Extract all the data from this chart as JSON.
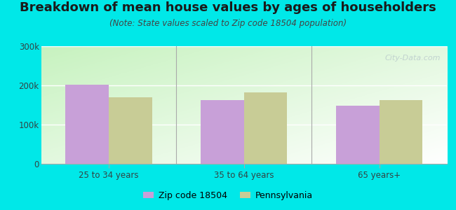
{
  "title": "Breakdown of mean house values by ages of householders",
  "subtitle": "(Note: State values scaled to Zip code 18504 population)",
  "categories": [
    "25 to 34 years",
    "35 to 64 years",
    "65 years+"
  ],
  "zip_values": [
    202000,
    163000,
    148000
  ],
  "state_values": [
    170000,
    182000,
    163000
  ],
  "zip_color": "#c8a0d8",
  "state_color": "#c8cc96",
  "background_color": "#00e8e8",
  "ylim": [
    0,
    300000
  ],
  "yticks": [
    0,
    100000,
    200000,
    300000
  ],
  "ytick_labels": [
    "0",
    "100k",
    "200k",
    "300k"
  ],
  "legend_zip_label": "Zip code 18504",
  "legend_state_label": "Pennsylvania",
  "bar_width": 0.32,
  "title_fontsize": 13,
  "subtitle_fontsize": 8.5,
  "tick_fontsize": 8.5,
  "legend_fontsize": 9,
  "watermark": "City-Data.com"
}
